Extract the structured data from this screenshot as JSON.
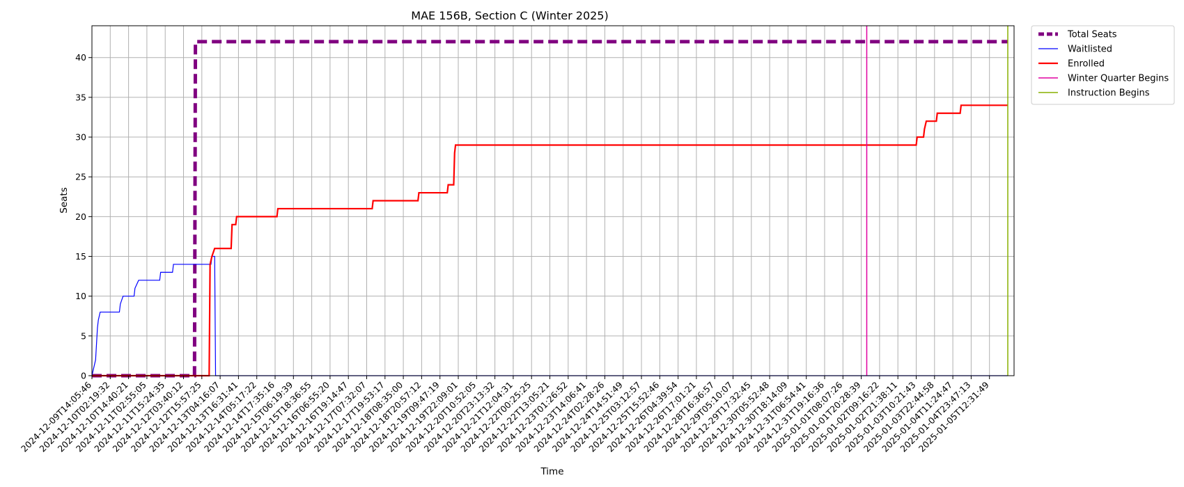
{
  "chart_data": {
    "type": "line",
    "title": "MAE 156B, Section C (Winter 2025)",
    "xlabel": "Time",
    "ylabel": "Seats",
    "ylim": [
      0,
      44
    ],
    "yticks": [
      0,
      5,
      10,
      15,
      20,
      25,
      30,
      35,
      40
    ],
    "grid": true,
    "legend_position": "outside-top-right",
    "x_ticks": [
      "2024-12-09T14:05:46",
      "2024-12-10T02:19:32",
      "2024-12-10T14:40:21",
      "2024-12-11T02:55:05",
      "2024-12-11T15:24:35",
      "2024-12-12T03:40:12",
      "2024-12-12T15:57:25",
      "2024-12-13T04:16:07",
      "2024-12-13T16:31:41",
      "2024-12-14T05:17:22",
      "2024-12-14T17:35:16",
      "2024-12-15T06:19:39",
      "2024-12-15T18:36:55",
      "2024-12-16T06:55:20",
      "2024-12-16T19:14:47",
      "2024-12-17T07:32:07",
      "2024-12-17T19:53:17",
      "2024-12-18T08:35:00",
      "2024-12-18T20:57:12",
      "2024-12-19T09:47:19",
      "2024-12-19T22:09:01",
      "2024-12-20T10:52:05",
      "2024-12-20T23:13:32",
      "2024-12-21T12:04:31",
      "2024-12-22T00:25:25",
      "2024-12-22T13:05:21",
      "2024-12-23T01:26:52",
      "2024-12-23T14:06:41",
      "2024-12-24T02:28:26",
      "2024-12-24T14:51:49",
      "2024-12-25T03:12:57",
      "2024-12-25T15:52:46",
      "2024-12-26T04:39:54",
      "2024-12-26T17:01:21",
      "2024-12-28T16:36:57",
      "2024-12-29T05:10:07",
      "2024-12-29T17:32:45",
      "2024-12-30T05:52:48",
      "2024-12-30T18:14:09",
      "2024-12-31T06:54:41",
      "2024-12-31T19:16:36",
      "2025-01-01T08:07:26",
      "2025-01-01T20:28:39",
      "2025-01-02T09:16:22",
      "2025-01-02T21:38:11",
      "2025-01-03T10:21:43",
      "2025-01-03T22:44:58",
      "2025-01-04T11:24:47",
      "2025-01-04T23:47:13",
      "2025-01-05T12:31:49"
    ],
    "x_index_range": [
      0,
      50
    ],
    "series": [
      {
        "name": "Total Seats",
        "color": "#800080",
        "style": "dashed",
        "points": [
          [
            0,
            0
          ],
          [
            5.6,
            0
          ],
          [
            5.65,
            42
          ],
          [
            50,
            42
          ]
        ]
      },
      {
        "name": "Waitlisted",
        "color": "#0000ff",
        "style": "solid",
        "points": [
          [
            0,
            0
          ],
          [
            0.1,
            1
          ],
          [
            0.2,
            2
          ],
          [
            0.3,
            6
          ],
          [
            0.35,
            7
          ],
          [
            0.45,
            8
          ],
          [
            1.5,
            8
          ],
          [
            1.55,
            9
          ],
          [
            1.7,
            10
          ],
          [
            2.3,
            10
          ],
          [
            2.35,
            11
          ],
          [
            2.55,
            12
          ],
          [
            3.7,
            12
          ],
          [
            3.75,
            13
          ],
          [
            4.4,
            13
          ],
          [
            4.45,
            14
          ],
          [
            6.5,
            14
          ],
          [
            6.55,
            15
          ],
          [
            6.7,
            15
          ],
          [
            6.75,
            0
          ],
          [
            50,
            0
          ]
        ]
      },
      {
        "name": "Enrolled",
        "color": "#ff0000",
        "style": "solid",
        "points": [
          [
            0,
            0
          ],
          [
            6.4,
            0
          ],
          [
            6.45,
            14
          ],
          [
            6.55,
            15
          ],
          [
            6.7,
            16
          ],
          [
            7.6,
            16
          ],
          [
            7.65,
            19
          ],
          [
            7.85,
            19
          ],
          [
            7.9,
            20
          ],
          [
            10.1,
            20
          ],
          [
            10.15,
            21
          ],
          [
            15.3,
            21
          ],
          [
            15.35,
            22
          ],
          [
            17.8,
            22
          ],
          [
            17.85,
            23
          ],
          [
            19.4,
            23
          ],
          [
            19.45,
            24
          ],
          [
            19.75,
            24
          ],
          [
            19.8,
            28
          ],
          [
            19.85,
            29
          ],
          [
            45,
            29
          ],
          [
            45.05,
            30
          ],
          [
            45.4,
            30
          ],
          [
            45.45,
            31
          ],
          [
            45.55,
            32
          ],
          [
            46.1,
            32
          ],
          [
            46.15,
            33
          ],
          [
            47.4,
            33
          ],
          [
            47.45,
            34
          ],
          [
            50,
            34
          ]
        ]
      },
      {
        "name": "Winter Quarter Begins",
        "color": "#e000a0",
        "style": "vline",
        "x": 42.3
      },
      {
        "name": "Instruction Begins",
        "color": "#88b000",
        "style": "vline",
        "x": 50
      }
    ]
  }
}
